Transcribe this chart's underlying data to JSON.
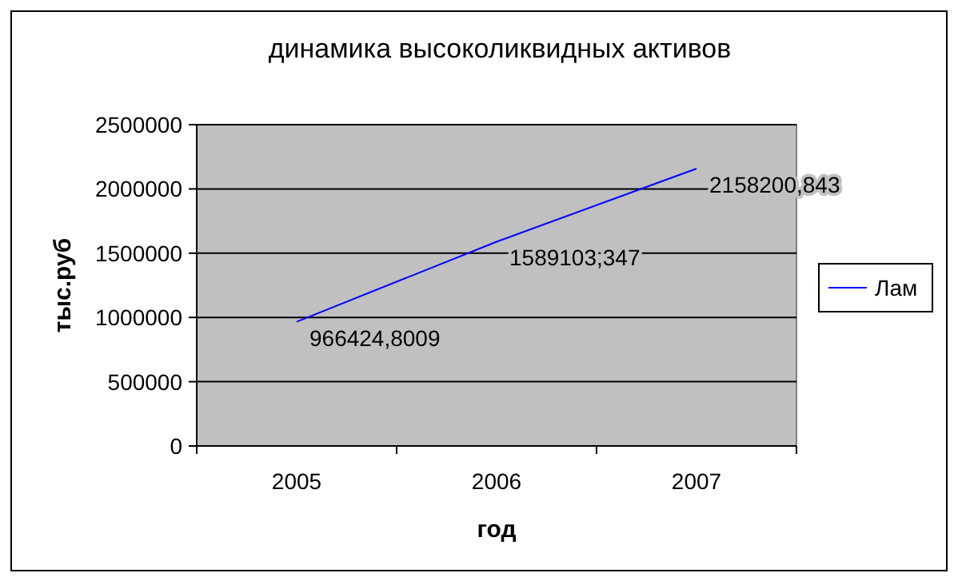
{
  "chart_data": {
    "type": "line",
    "title": "динамика высоколиквидных активов",
    "xlabel": "год",
    "ylabel": "тыс.руб",
    "categories": [
      "2005",
      "2006",
      "2007"
    ],
    "series": [
      {
        "name": "Лам",
        "color": "#0000ff",
        "values": [
          966424.8009,
          1589103.347,
          2158200.843
        ],
        "value_labels": [
          "966424,8009",
          "1589103,347",
          "2158200,843"
        ]
      }
    ],
    "ylim": [
      0,
      2500000
    ],
    "yticks": [
      0,
      500000,
      1000000,
      1500000,
      2000000,
      2500000
    ],
    "grid": "y",
    "legend": "right",
    "marker": "none",
    "line_style": "solid"
  }
}
